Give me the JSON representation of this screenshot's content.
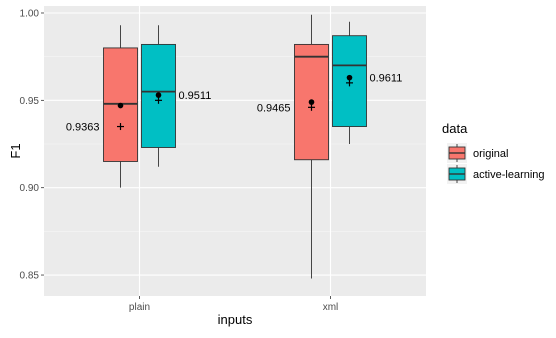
{
  "chart_data": {
    "type": "box",
    "xlabel": "inputs",
    "ylabel": "F1",
    "ylim": [
      0.838,
      1.004
    ],
    "yticks": [
      0.85,
      0.9,
      0.95,
      1.0
    ],
    "ytick_labels": [
      "0.85",
      "0.90",
      "0.95",
      "1.00"
    ],
    "categories": [
      "plain",
      "xml"
    ],
    "grid": true,
    "legend": {
      "title": "data",
      "position": "right",
      "entries": [
        {
          "name": "original",
          "color": "#F8766D"
        },
        {
          "name": "active-learning",
          "color": "#00BFC4"
        }
      ]
    },
    "series": [
      {
        "name": "original",
        "color": "#F8766D",
        "boxes": [
          {
            "category": "plain",
            "min": 0.9,
            "q1": 0.915,
            "median": 0.948,
            "q3": 0.98,
            "max": 0.993,
            "mean": 0.947,
            "mean_alt": 0.935,
            "label": "0.9363"
          },
          {
            "category": "xml",
            "min": 0.848,
            "q1": 0.916,
            "median": 0.975,
            "q3": 0.982,
            "max": 0.999,
            "mean": 0.949,
            "mean_alt": 0.946,
            "label": "0.9465"
          }
        ]
      },
      {
        "name": "active-learning",
        "color": "#00BFC4",
        "boxes": [
          {
            "category": "plain",
            "min": 0.912,
            "q1": 0.923,
            "median": 0.955,
            "q3": 0.982,
            "max": 0.993,
            "mean": 0.953,
            "mean_alt": 0.95,
            "label": "0.9511"
          },
          {
            "category": "xml",
            "min": 0.925,
            "q1": 0.935,
            "median": 0.97,
            "q3": 0.987,
            "max": 0.995,
            "mean": 0.963,
            "mean_alt": 0.96,
            "label": "0.9611"
          }
        ]
      }
    ]
  }
}
